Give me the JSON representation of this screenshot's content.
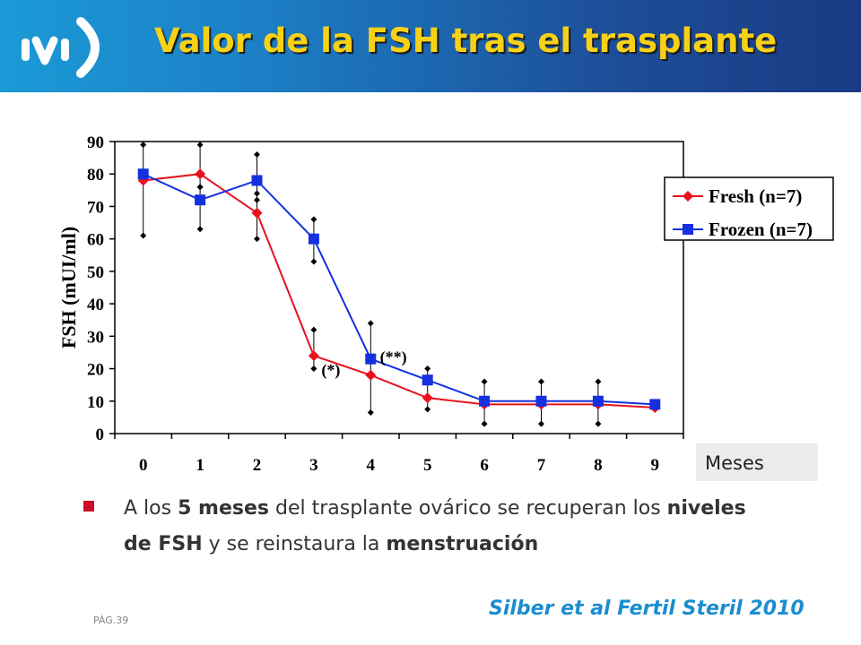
{
  "header": {
    "logo_text": "ivi",
    "title": "Valor de la FSH tras el trasplante"
  },
  "colors": {
    "fresh": "#e8111c",
    "frozen": "#1430e0",
    "title": "#f7d117",
    "citation": "#1a8dd0",
    "bullet": "#c8102e"
  },
  "chart_data": {
    "type": "line",
    "ylabel": "FSH (mUI/ml)",
    "xlabel": "Meses",
    "ylim": [
      0,
      90
    ],
    "yticks": [
      0,
      10,
      20,
      30,
      40,
      50,
      60,
      70,
      80,
      90
    ],
    "x": [
      0,
      1,
      2,
      3,
      4,
      5,
      6,
      7,
      8,
      9
    ],
    "series": [
      {
        "name": "Fresh (n=7)",
        "marker": "diamond",
        "color": "#e8111c",
        "values": [
          78,
          80,
          68,
          24,
          18,
          11,
          9,
          9,
          9,
          8
        ]
      },
      {
        "name": "Frozen (n=7)",
        "marker": "square",
        "color": "#1430e0",
        "values": [
          80,
          72,
          78,
          60,
          23,
          16.5,
          10,
          10,
          10,
          9
        ]
      }
    ],
    "error_bars": [
      {
        "x": 0,
        "low": 61,
        "high": 89
      },
      {
        "x": 1,
        "low": 63,
        "high": 89
      },
      {
        "x": 1,
        "low": 76,
        "high": 76
      },
      {
        "x": 2,
        "low": 60,
        "high": 86
      },
      {
        "x": 2,
        "low": 72,
        "high": 74
      },
      {
        "x": 3,
        "low": 53,
        "high": 66
      },
      {
        "x": 3,
        "low": 20,
        "high": 32
      },
      {
        "x": 4,
        "low": 6.5,
        "high": 34
      },
      {
        "x": 5,
        "low": 7.5,
        "high": 20
      },
      {
        "x": 6,
        "low": 3,
        "high": 16
      },
      {
        "x": 7,
        "low": 3,
        "high": 16
      },
      {
        "x": 8,
        "low": 3,
        "high": 16
      }
    ],
    "annotations": [
      {
        "text": "(*)",
        "x": 3.3,
        "y": 18
      },
      {
        "text": "(**)",
        "x": 4.4,
        "y": 22
      }
    ],
    "legend_position": "right",
    "grid": false
  },
  "bullet": {
    "p1": "A los ",
    "b1": "5 meses",
    "p2": " del trasplante ovárico se recuperan los ",
    "b2": "niveles de FSH",
    "p3": " y se reinstaura la ",
    "b3": "menstruación"
  },
  "footer": {
    "page": "PÁG.39",
    "citation": "Silber  et al  Fertil Steril  2010"
  }
}
